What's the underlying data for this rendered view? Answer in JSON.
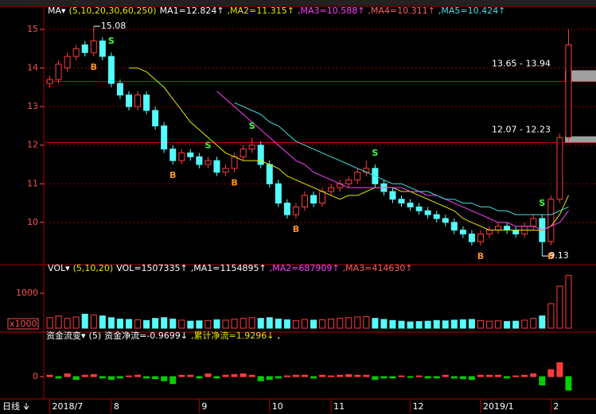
{
  "chart_data": [
    {
      "type": "candlestick",
      "header": [
        {
          "text": "MA▾",
          "color": "#ffffff"
        },
        {
          "text": "(5,10,20,30,60,250)",
          "color": "#e8e800"
        },
        {
          "text": "MA1=12.824↑",
          "color": "#ffffff"
        },
        {
          "text": ",MA2=11.315↑",
          "color": "#e8e800"
        },
        {
          "text": ",MA3=10.588↑",
          "color": "#ff40ff"
        },
        {
          "text": ",MA4=10.311↑",
          "color": "#ff6060"
        },
        {
          "text": ",MA5=10.424↑",
          "color": "#40e0e0"
        }
      ],
      "period_label": "日线",
      "categories": [
        "2018/7",
        null,
        null,
        null,
        null,
        null,
        null,
        "8",
        null,
        null,
        null,
        null,
        null,
        null,
        null,
        null,
        null,
        "9",
        null,
        null,
        null,
        null,
        null,
        null,
        null,
        "10",
        null,
        null,
        null,
        null,
        null,
        null,
        "11",
        null,
        null,
        null,
        null,
        null,
        null,
        null,
        null,
        "12",
        null,
        null,
        null,
        null,
        null,
        null,
        null,
        "2019/1",
        null,
        null,
        null,
        null,
        null,
        null,
        null,
        "2",
        null,
        null
      ],
      "open": [
        13.6,
        13.7,
        14.0,
        14.3,
        14.6,
        14.4,
        14.7,
        14.3,
        13.6,
        13.3,
        13.0,
        13.3,
        12.9,
        12.5,
        11.9,
        11.6,
        11.8,
        11.7,
        11.5,
        11.6,
        11.3,
        11.4,
        11.7,
        11.9,
        12.0,
        11.5,
        11.0,
        10.5,
        10.2,
        10.4,
        10.7,
        10.5,
        10.8,
        10.9,
        11.0,
        11.1,
        11.3,
        11.4,
        11.0,
        10.8,
        10.6,
        10.5,
        10.4,
        10.3,
        10.2,
        10.1,
        10.0,
        9.8,
        9.7,
        9.5,
        9.7,
        9.8,
        9.9,
        9.8,
        9.7,
        9.9,
        10.1,
        9.5,
        10.6,
        12.2
      ],
      "high": [
        13.8,
        14.2,
        14.4,
        14.6,
        14.7,
        15.08,
        14.8,
        14.4,
        13.7,
        13.4,
        13.4,
        13.4,
        13.0,
        12.6,
        12.0,
        11.9,
        11.9,
        11.8,
        11.7,
        11.7,
        11.5,
        11.8,
        12.0,
        12.2,
        12.1,
        11.6,
        11.1,
        10.6,
        10.5,
        10.8,
        10.8,
        10.9,
        11.0,
        11.1,
        11.2,
        11.4,
        11.6,
        11.5,
        11.1,
        10.9,
        10.7,
        10.6,
        10.5,
        10.4,
        10.3,
        10.2,
        10.1,
        9.9,
        9.8,
        9.8,
        9.9,
        10.0,
        10.0,
        9.9,
        10.0,
        10.2,
        10.2,
        10.7,
        12.3,
        15.0
      ],
      "low": [
        13.5,
        13.6,
        13.9,
        14.2,
        14.3,
        14.3,
        14.2,
        13.5,
        13.2,
        12.9,
        12.9,
        12.8,
        12.4,
        11.8,
        11.5,
        11.5,
        11.6,
        11.4,
        11.4,
        11.2,
        11.2,
        11.3,
        11.6,
        11.8,
        11.4,
        10.9,
        10.4,
        10.1,
        10.1,
        10.3,
        10.4,
        10.4,
        10.7,
        10.8,
        10.9,
        11.0,
        11.2,
        10.9,
        10.7,
        10.5,
        10.4,
        10.3,
        10.2,
        10.1,
        10.0,
        9.9,
        9.7,
        9.6,
        9.4,
        9.4,
        9.6,
        9.7,
        9.7,
        9.6,
        9.6,
        9.8,
        9.13,
        9.4,
        10.5,
        12.1
      ],
      "close": [
        13.7,
        14.1,
        14.3,
        14.5,
        14.4,
        14.7,
        14.3,
        13.6,
        13.3,
        13.0,
        13.3,
        12.9,
        12.5,
        11.9,
        11.6,
        11.8,
        11.7,
        11.5,
        11.6,
        11.3,
        11.4,
        11.7,
        11.9,
        12.0,
        11.5,
        11.0,
        10.5,
        10.2,
        10.4,
        10.7,
        10.5,
        10.8,
        10.9,
        11.0,
        11.1,
        11.3,
        11.4,
        11.0,
        10.8,
        10.6,
        10.5,
        10.4,
        10.3,
        10.2,
        10.1,
        10.0,
        9.8,
        9.7,
        9.5,
        9.7,
        9.8,
        9.9,
        9.8,
        9.7,
        9.9,
        10.1,
        9.5,
        10.6,
        12.2,
        14.6
      ],
      "up_color": "#ff3c3c",
      "down_color": "#54fcfc",
      "lines": [
        {
          "color": "#e8e800",
          "values": [
            null,
            null,
            null,
            null,
            null,
            null,
            null,
            null,
            null,
            14.0,
            14.0,
            13.9,
            13.7,
            13.5,
            13.2,
            12.9,
            12.6,
            12.4,
            12.2,
            12.0,
            11.8,
            11.7,
            11.6,
            11.6,
            11.6,
            11.5,
            11.4,
            11.2,
            11.1,
            11.0,
            10.9,
            10.8,
            10.7,
            10.6,
            10.7,
            10.7,
            10.8,
            10.9,
            10.9,
            10.9,
            10.8,
            10.8,
            10.7,
            10.6,
            10.5,
            10.4,
            10.3,
            10.1,
            10.0,
            9.9,
            9.8,
            9.8,
            9.8,
            9.8,
            9.8,
            9.8,
            9.8,
            9.9,
            10.2,
            10.7
          ]
        },
        {
          "color": "#ff40ff",
          "values": [
            null,
            null,
            null,
            null,
            null,
            null,
            null,
            null,
            null,
            null,
            null,
            null,
            null,
            null,
            null,
            null,
            null,
            null,
            null,
            13.4,
            13.2,
            13.0,
            12.8,
            12.6,
            12.4,
            12.2,
            12.0,
            11.8,
            11.6,
            11.5,
            11.3,
            11.2,
            11.1,
            11.0,
            10.9,
            10.9,
            10.9,
            10.9,
            10.9,
            10.9,
            10.9,
            10.8,
            10.8,
            10.7,
            10.7,
            10.6,
            10.5,
            10.4,
            10.3,
            10.2,
            10.1,
            10.0,
            10.0,
            9.9,
            9.9,
            9.9,
            9.8,
            9.9,
            10.0,
            10.3
          ]
        },
        {
          "color": "#40e0e0",
          "values": [
            null,
            null,
            null,
            null,
            null,
            null,
            null,
            null,
            null,
            null,
            null,
            null,
            null,
            null,
            null,
            null,
            null,
            null,
            null,
            null,
            null,
            13.1,
            13.0,
            12.9,
            12.8,
            12.6,
            12.5,
            12.3,
            12.1,
            12.0,
            11.9,
            11.8,
            11.7,
            11.6,
            11.5,
            11.4,
            11.3,
            11.2,
            11.1,
            11.0,
            11.0,
            10.9,
            10.8,
            10.8,
            10.7,
            10.6,
            10.6,
            10.5,
            10.5,
            10.4,
            10.4,
            10.3,
            10.3,
            10.2,
            10.2,
            10.2,
            10.2,
            10.2,
            10.3,
            10.4
          ]
        }
      ],
      "signals": [
        {
          "label": "B",
          "index": 5
        },
        {
          "label": "S",
          "index": 7
        },
        {
          "label": "B",
          "index": 14
        },
        {
          "label": "S",
          "index": 18
        },
        {
          "label": "B",
          "index": 21
        },
        {
          "label": "S",
          "index": 23
        },
        {
          "label": "B",
          "index": 28
        },
        {
          "label": "S",
          "index": 37
        },
        {
          "label": "B",
          "index": 49
        },
        {
          "label": "S",
          "index": 56
        },
        {
          "label": "B",
          "index": 57
        }
      ],
      "zones": [
        {
          "label": "13.65 - 13.94",
          "low": 13.65,
          "high": 13.94
        },
        {
          "label": "12.07 - 12.23",
          "low": 12.07,
          "high": 12.23
        }
      ],
      "ylim": [
        9.05,
        15.35
      ],
      "yticks": [
        10,
        11,
        12,
        13,
        14,
        15
      ],
      "grid": true
    },
    {
      "type": "bar",
      "header": [
        {
          "text": "VOL▾",
          "color": "#ffffff"
        },
        {
          "text": "(5,10,20)",
          "color": "#e8e800"
        },
        {
          "text": "VOL=1507335↑",
          "color": "#ffffff"
        },
        {
          "text": ",MA1=1154895↑",
          "color": "#ffffff"
        },
        {
          "text": ",MA2=687909↑",
          "color": "#ff40ff"
        },
        {
          "text": ",MA3=414630↑",
          "color": "#ff6060"
        }
      ],
      "unit_label": "x1000",
      "values": [
        300,
        350,
        280,
        320,
        400,
        380,
        350,
        300,
        260,
        250,
        240,
        220,
        280,
        300,
        260,
        230,
        200,
        210,
        220,
        240,
        230,
        260,
        280,
        300,
        280,
        300,
        260,
        240,
        220,
        250,
        230,
        240,
        260,
        280,
        300,
        320,
        330,
        280,
        250,
        220,
        200,
        180,
        190,
        200,
        220,
        210,
        230,
        240,
        250,
        220,
        200,
        210,
        190,
        200,
        230,
        280,
        350,
        700,
        1200,
        1507.335
      ],
      "ylim": [
        0,
        1545
      ],
      "yticks": [
        1000
      ]
    },
    {
      "type": "bar",
      "header": [
        {
          "text": "资金流变▾",
          "color": "#ffffff"
        },
        {
          "text": "(5)",
          "color": "#ffffff"
        },
        {
          "text": "资金净流=-0.9699↓",
          "color": "#ffffff"
        },
        {
          "text": ",累计净流=1.9296↓",
          "color": "#e8e800"
        },
        {
          "text": ",",
          "color": "#ffffff"
        }
      ],
      "values": [
        0.1,
        -0.1,
        0.2,
        -0.2,
        0.1,
        0.15,
        -0.1,
        -0.2,
        -0.1,
        0.05,
        0.1,
        -0.1,
        -0.15,
        -0.3,
        -0.5,
        0.1,
        0.1,
        -0.1,
        0.2,
        -0.1,
        0.1,
        0.15,
        0.2,
        0.1,
        -0.3,
        -0.2,
        -0.1,
        0.05,
        0.1,
        0.1,
        -0.1,
        0.1,
        0.05,
        0.1,
        0.15,
        0.1,
        0.1,
        -0.2,
        -0.1,
        -0.1,
        0.05,
        -0.05,
        0.05,
        -0.1,
        -0.1,
        0.1,
        -0.1,
        -0.15,
        -0.2,
        0.1,
        0.1,
        0.1,
        -0.1,
        0.05,
        0.1,
        0.2,
        -0.6,
        0.5,
        1.0,
        -0.9699
      ],
      "pos_color": "#ff3c3c",
      "neg_color": "#00d000",
      "ylim": [
        -1.48,
        2.5
      ],
      "yticks": [
        0
      ]
    }
  ]
}
